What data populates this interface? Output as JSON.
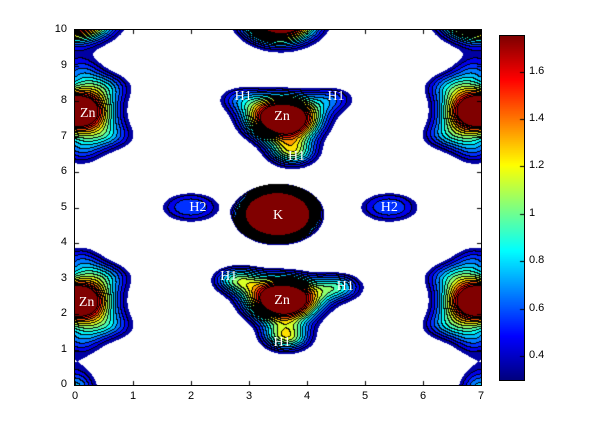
{
  "figure": {
    "background": "#ffffff",
    "axes": {
      "x_range": [
        0,
        7
      ],
      "y_range": [
        0,
        10
      ],
      "x_tick_labels": [
        "0",
        "1",
        "2",
        "3",
        "4",
        "5",
        "6",
        "7"
      ],
      "x_tick_values": [
        0,
        1,
        2,
        3,
        4,
        5,
        6,
        7
      ],
      "y_tick_labels": [
        "0",
        "1",
        "2",
        "3",
        "4",
        "5",
        "6",
        "7",
        "8",
        "9",
        "10"
      ],
      "y_tick_values": [
        0,
        1,
        2,
        3,
        4,
        5,
        6,
        7,
        8,
        9,
        10
      ],
      "box_color": "#000000"
    },
    "colorbar": {
      "tick_labels": [
        "0.4",
        "0.6",
        "0.8",
        "1",
        "1.2",
        "1.4",
        "1.6"
      ],
      "tick_values": [
        0.4,
        0.6,
        0.8,
        1.0,
        1.2,
        1.4,
        1.6
      ],
      "vmin": 0.3,
      "vmax": 1.75,
      "colormap": "jet"
    }
  },
  "chart_data": {
    "type": "heatmap",
    "subtype": "filled-contour-density-map",
    "title": "",
    "xlabel": "",
    "ylabel": "",
    "x_range": [
      0,
      7
    ],
    "y_range": [
      0,
      10
    ],
    "value_range": [
      0.3,
      1.75
    ],
    "contour_step": 0.1,
    "colormap": "jet",
    "background_below_min": "#ffffff",
    "atom_labels": [
      {
        "text": "Zn",
        "x": 0.22,
        "y": 7.62
      },
      {
        "text": "H1",
        "x": 2.9,
        "y": 8.1
      },
      {
        "text": "Zn",
        "x": 3.57,
        "y": 7.55
      },
      {
        "text": "H1",
        "x": 4.5,
        "y": 8.1
      },
      {
        "text": "H1",
        "x": 3.82,
        "y": 6.42
      },
      {
        "text": "H2",
        "x": 2.12,
        "y": 5.0
      },
      {
        "text": "K",
        "x": 3.5,
        "y": 4.75
      },
      {
        "text": "H2",
        "x": 5.42,
        "y": 5.0
      },
      {
        "text": "H1",
        "x": 2.65,
        "y": 3.05
      },
      {
        "text": "Zn",
        "x": 3.57,
        "y": 2.38
      },
      {
        "text": "H1",
        "x": 4.66,
        "y": 2.77
      },
      {
        "text": "H1",
        "x": 3.57,
        "y": 1.18
      },
      {
        "text": "Zn",
        "x": 0.2,
        "y": 2.3
      }
    ],
    "density_peaks": [
      {
        "x": 0.0,
        "y": 7.7,
        "a": 2.6,
        "sx": 0.42,
        "sy": 0.42,
        "p": 1
      },
      {
        "x": 0.55,
        "y": 8.4,
        "a": 0.55,
        "sx": 0.33,
        "sy": 0.3,
        "p": 1
      },
      {
        "x": 0.6,
        "y": 7.0,
        "a": 0.55,
        "sx": 0.33,
        "sy": 0.3,
        "p": 1
      },
      {
        "x": 0.1,
        "y": 8.85,
        "a": 0.5,
        "sx": 0.3,
        "sy": 0.35,
        "p": 1
      },
      {
        "x": 0.1,
        "y": 6.6,
        "a": 0.5,
        "sx": 0.3,
        "sy": 0.35,
        "p": 1
      },
      {
        "x": 7.0,
        "y": 7.7,
        "a": 2.6,
        "sx": 0.42,
        "sy": 0.42,
        "p": 1
      },
      {
        "x": 6.45,
        "y": 8.4,
        "a": 0.55,
        "sx": 0.33,
        "sy": 0.3,
        "p": 1
      },
      {
        "x": 6.4,
        "y": 7.0,
        "a": 0.55,
        "sx": 0.33,
        "sy": 0.3,
        "p": 1
      },
      {
        "x": 6.9,
        "y": 8.85,
        "a": 0.5,
        "sx": 0.3,
        "sy": 0.35,
        "p": 1
      },
      {
        "x": 6.9,
        "y": 6.6,
        "a": 0.5,
        "sx": 0.3,
        "sy": 0.35,
        "p": 1
      },
      {
        "x": 0.0,
        "y": 2.35,
        "a": 2.6,
        "sx": 0.42,
        "sy": 0.42,
        "p": 1
      },
      {
        "x": 0.55,
        "y": 3.05,
        "a": 0.55,
        "sx": 0.33,
        "sy": 0.3,
        "p": 1
      },
      {
        "x": 0.6,
        "y": 1.65,
        "a": 0.55,
        "sx": 0.33,
        "sy": 0.3,
        "p": 1
      },
      {
        "x": 0.1,
        "y": 3.5,
        "a": 0.5,
        "sx": 0.3,
        "sy": 0.35,
        "p": 1
      },
      {
        "x": 0.1,
        "y": 1.25,
        "a": 0.5,
        "sx": 0.3,
        "sy": 0.35,
        "p": 1
      },
      {
        "x": 7.0,
        "y": 2.35,
        "a": 2.6,
        "sx": 0.42,
        "sy": 0.42,
        "p": 1
      },
      {
        "x": 6.45,
        "y": 3.05,
        "a": 0.55,
        "sx": 0.33,
        "sy": 0.3,
        "p": 1
      },
      {
        "x": 6.4,
        "y": 1.65,
        "a": 0.55,
        "sx": 0.33,
        "sy": 0.3,
        "p": 1
      },
      {
        "x": 6.9,
        "y": 3.5,
        "a": 0.5,
        "sx": 0.3,
        "sy": 0.35,
        "p": 1
      },
      {
        "x": 6.9,
        "y": 1.25,
        "a": 0.5,
        "sx": 0.3,
        "sy": 0.35,
        "p": 1
      },
      {
        "x": 3.6,
        "y": 7.5,
        "a": 2.6,
        "sx": 0.42,
        "sy": 0.42,
        "p": 1
      },
      {
        "x": 2.85,
        "y": 8.05,
        "a": 0.5,
        "sx": 0.3,
        "sy": 0.28,
        "p": 1
      },
      {
        "x": 4.45,
        "y": 8.05,
        "a": 0.5,
        "sx": 0.3,
        "sy": 0.28,
        "p": 1
      },
      {
        "x": 3.75,
        "y": 6.55,
        "a": 1.0,
        "sx": 0.3,
        "sy": 0.3,
        "p": 1
      },
      {
        "x": 3.6,
        "y": 2.4,
        "a": 2.6,
        "sx": 0.42,
        "sy": 0.42,
        "p": 1
      },
      {
        "x": 2.8,
        "y": 2.95,
        "a": 0.9,
        "sx": 0.3,
        "sy": 0.28,
        "p": 1
      },
      {
        "x": 4.55,
        "y": 2.75,
        "a": 0.8,
        "sx": 0.3,
        "sy": 0.28,
        "p": 1
      },
      {
        "x": 3.65,
        "y": 1.35,
        "a": 1.1,
        "sx": 0.3,
        "sy": 0.3,
        "p": 1
      },
      {
        "x": 3.5,
        "y": 4.8,
        "a": 2.9,
        "sx": 0.46,
        "sy": 0.5,
        "p": 2
      },
      {
        "x": 2.0,
        "y": 5.0,
        "a": 0.56,
        "sx": 0.4,
        "sy": 0.33,
        "p": 1.5
      },
      {
        "x": 5.42,
        "y": 5.0,
        "a": 0.56,
        "sx": 0.4,
        "sy": 0.33,
        "p": 1.5
      },
      {
        "x": 3.55,
        "y": 10.3,
        "a": 2.6,
        "sx": 0.42,
        "sy": 0.45,
        "p": 1
      },
      {
        "x": 0.0,
        "y": 10.35,
        "a": 2.4,
        "sx": 0.45,
        "sy": 0.45,
        "p": 1
      },
      {
        "x": 7.0,
        "y": 10.35,
        "a": 2.4,
        "sx": 0.45,
        "sy": 0.45,
        "p": 1
      },
      {
        "x": 0.0,
        "y": -0.2,
        "a": 0.8,
        "sx": 0.28,
        "sy": 0.5,
        "p": 1
      },
      {
        "x": 7.0,
        "y": -0.2,
        "a": 0.8,
        "sx": 0.28,
        "sy": 0.5,
        "p": 1
      }
    ]
  }
}
